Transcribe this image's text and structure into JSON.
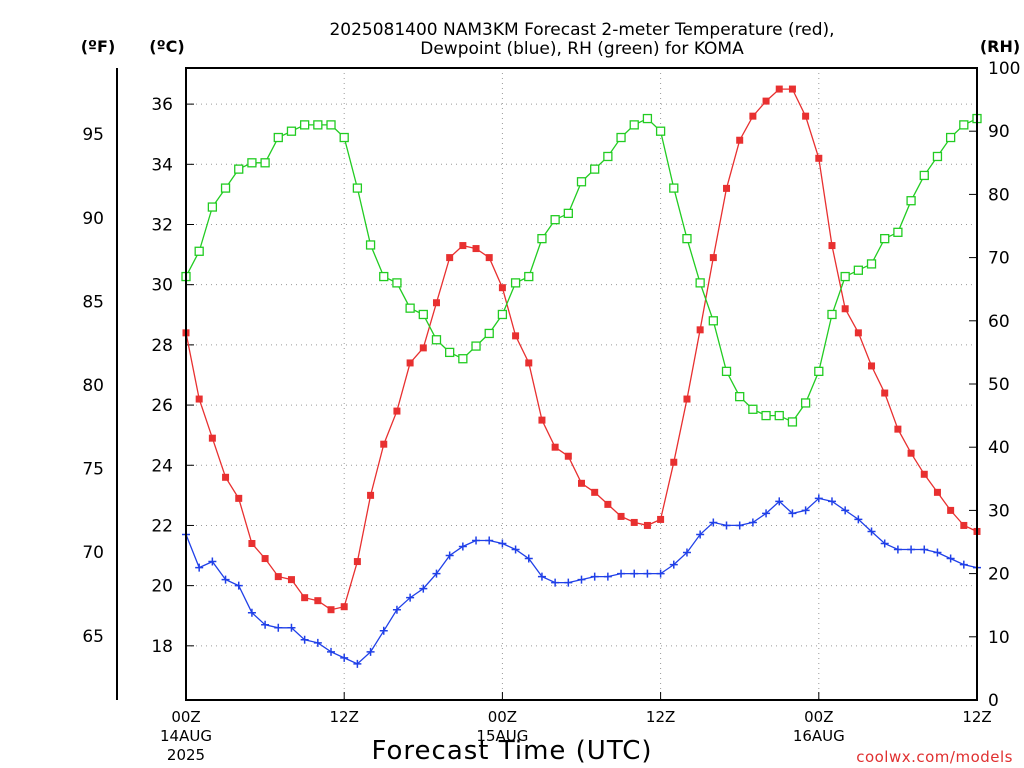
{
  "chart_data": {
    "type": "line",
    "title_lines": [
      "2025081400 NAM3KM Forecast 2-meter Temperature (red),",
      "Dewpoint (blue), RH (green) for KOMA"
    ],
    "xlabel": "Forecast Time (UTC)",
    "credit": "coolwx.com/models",
    "units": {
      "fahrenheit": "(ºF)",
      "celsius": "(ºC)",
      "rh": "(RH)"
    },
    "x_range_hours": [
      0,
      60
    ],
    "x_ticks": [
      {
        "hour": 0,
        "lines": [
          "00Z",
          "14AUG",
          "2025"
        ]
      },
      {
        "hour": 12,
        "lines": [
          "12Z"
        ]
      },
      {
        "hour": 24,
        "lines": [
          "00Z",
          "15AUG"
        ]
      },
      {
        "hour": 36,
        "lines": [
          "12Z"
        ]
      },
      {
        "hour": 48,
        "lines": [
          "00Z",
          "16AUG"
        ]
      },
      {
        "hour": 60,
        "lines": [
          "12Z"
        ]
      }
    ],
    "celsius_axis": {
      "range": [
        16.2,
        37.2
      ],
      "ticks": [
        18,
        20,
        22,
        24,
        26,
        28,
        30,
        32,
        34,
        36
      ]
    },
    "fahrenheit_axis": {
      "ticks": [
        65,
        70,
        75,
        80,
        85,
        90,
        95
      ]
    },
    "rh_axis": {
      "range": [
        0,
        100
      ],
      "ticks": [
        0,
        10,
        20,
        30,
        40,
        50,
        60,
        70,
        80,
        90,
        100
      ]
    },
    "series": [
      {
        "axis": "celsius",
        "color": "#e83030",
        "marker": "filled-square",
        "values": [
          28.4,
          26.2,
          24.9,
          23.6,
          22.9,
          21.4,
          20.9,
          20.3,
          20.2,
          19.6,
          19.5,
          19.2,
          19.3,
          20.8,
          23.0,
          24.7,
          25.8,
          27.4,
          27.9,
          29.4,
          30.9,
          31.3,
          31.2,
          30.9,
          29.9,
          28.3,
          27.4,
          25.5,
          24.6,
          24.3,
          23.4,
          23.1,
          22.7,
          22.3,
          22.1,
          22.0,
          22.2,
          24.1,
          26.2,
          28.5,
          30.9,
          33.2,
          34.8,
          35.6,
          36.1,
          36.5,
          36.5,
          35.6,
          34.2,
          31.3,
          29.2,
          28.4,
          27.3,
          26.4,
          25.2,
          24.4,
          23.7,
          23.1,
          22.5,
          22.0,
          21.8
        ]
      },
      {
        "axis": "celsius",
        "color": "#2040e8",
        "marker": "plus",
        "values": [
          21.7,
          20.6,
          20.8,
          20.2,
          20.0,
          19.1,
          18.7,
          18.6,
          18.6,
          18.2,
          18.1,
          17.8,
          17.6,
          17.4,
          17.8,
          18.5,
          19.2,
          19.6,
          19.9,
          20.4,
          21.0,
          21.3,
          21.5,
          21.5,
          21.4,
          21.2,
          20.9,
          20.3,
          20.1,
          20.1,
          20.2,
          20.3,
          20.3,
          20.4,
          20.4,
          20.4,
          20.4,
          20.7,
          21.1,
          21.7,
          22.1,
          22.0,
          22.0,
          22.1,
          22.4,
          22.8,
          22.4,
          22.5,
          22.9,
          22.8,
          22.5,
          22.2,
          21.8,
          21.4,
          21.2,
          21.2,
          21.2,
          21.1,
          20.9,
          20.7,
          20.6
        ]
      },
      {
        "axis": "rh",
        "color": "#22cc22",
        "marker": "open-square",
        "values": [
          67,
          71,
          78,
          81,
          84,
          85,
          85,
          89,
          90,
          91,
          91,
          91,
          89,
          81,
          72,
          67,
          66,
          62,
          61,
          57,
          55,
          54,
          56,
          58,
          61,
          66,
          67,
          73,
          76,
          77,
          82,
          84,
          86,
          89,
          91,
          92,
          90,
          81,
          73,
          66,
          60,
          52,
          48,
          46,
          45,
          45,
          44,
          47,
          52,
          61,
          67,
          68,
          69,
          73,
          74,
          79,
          83,
          86,
          89,
          91,
          92
        ]
      }
    ]
  }
}
